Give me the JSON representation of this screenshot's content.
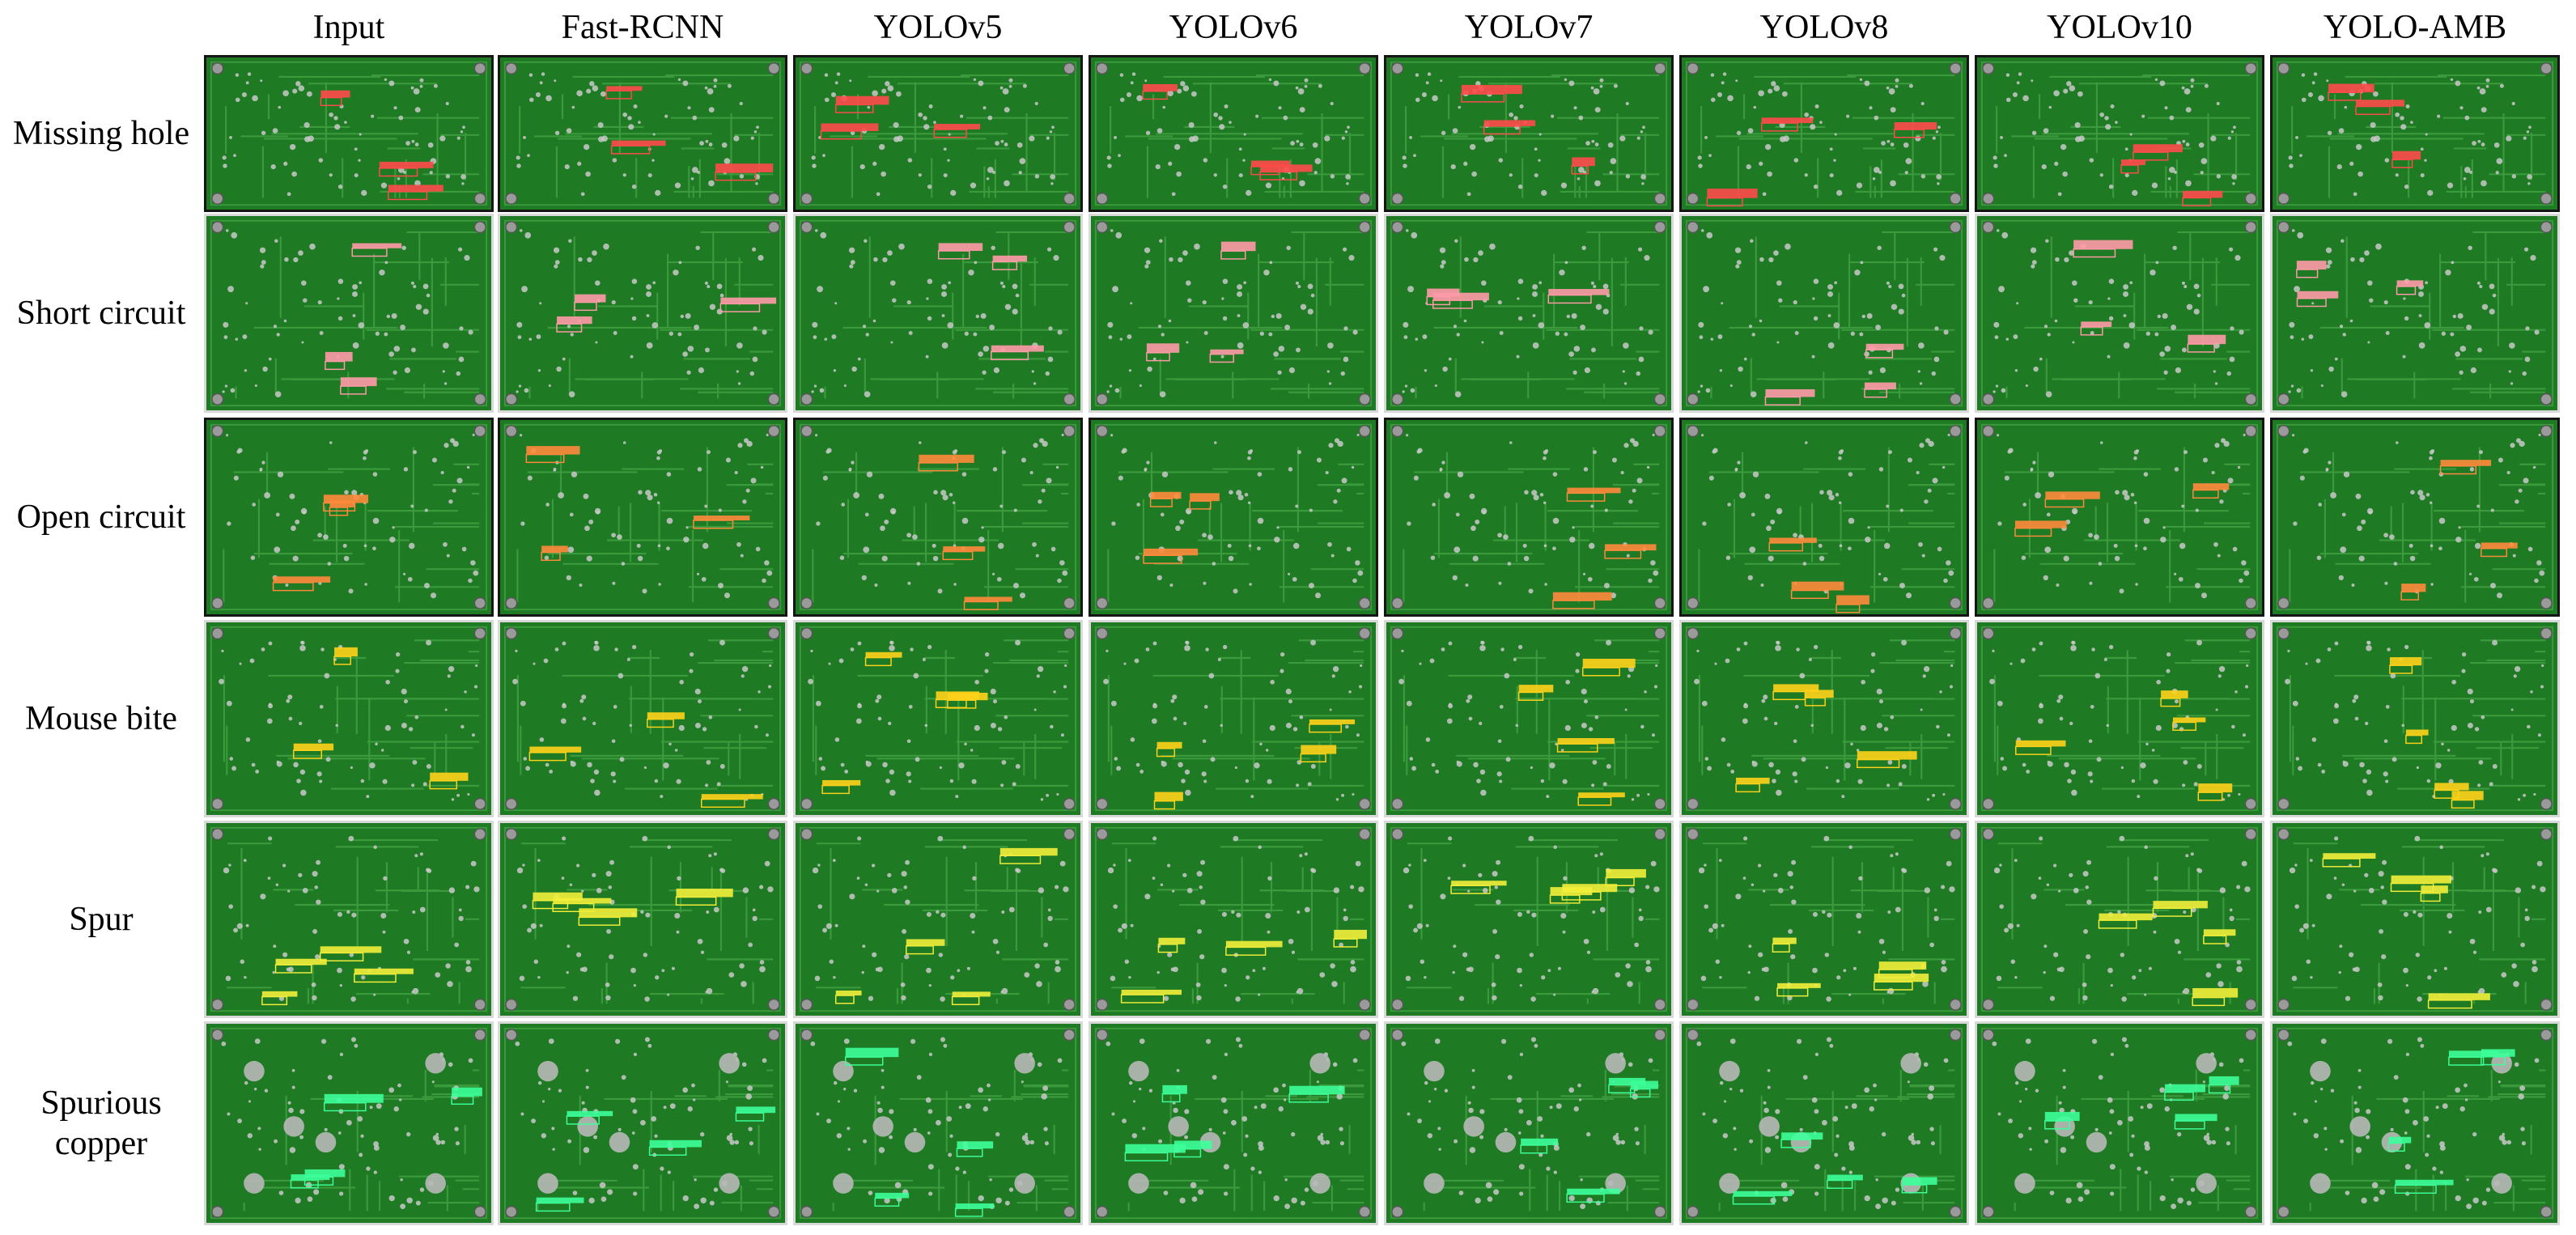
{
  "columns": [
    "Input",
    "Fast-RCNN",
    "YOLOv5",
    "YOLOv6",
    "YOLOv7",
    "YOLOv8",
    "YOLOv10",
    "YOLO-AMB"
  ],
  "rows": [
    {
      "label_lines": [
        "Missing hole"
      ],
      "box_color": "#ff4a4a",
      "dark_frame": true
    },
    {
      "label_lines": [
        "Short circuit"
      ],
      "box_color": "#ff9aa8",
      "dark_frame": false
    },
    {
      "label_lines": [
        "Open circuit"
      ],
      "box_color": "#ff8a3c",
      "dark_frame": true
    },
    {
      "label_lines": [
        "Mouse bite"
      ],
      "box_color": "#ffd21a",
      "dark_frame": false
    },
    {
      "label_lines": [
        "Spur"
      ],
      "box_color": "#f2ee3a",
      "dark_frame": false
    },
    {
      "label_lines": [
        "Spurious",
        "copper"
      ],
      "box_color": "#3cff9a",
      "dark_frame": false
    }
  ],
  "colors": {
    "pcb_green": "#1f7a24",
    "pcb_trace": "#3a9a3c",
    "pcb_pad": "#c9c9c9",
    "cell_border": "#d9d9d9"
  }
}
